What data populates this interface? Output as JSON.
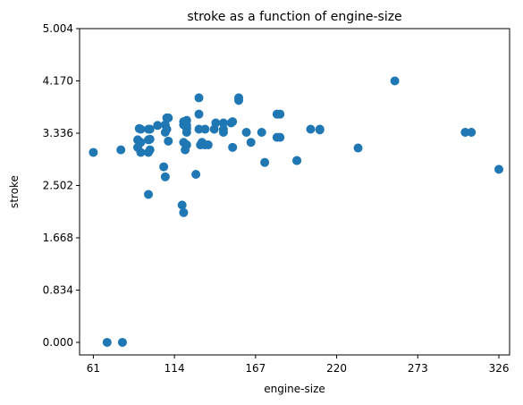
{
  "chart_data": {
    "type": "scatter",
    "title": "stroke as a function of engine-size",
    "xlabel": "engine-size",
    "ylabel": "stroke",
    "xlim": [
      52,
      333
    ],
    "ylim": [
      -0.2,
      5.004
    ],
    "xticks": [
      61,
      114,
      167,
      220,
      273,
      326
    ],
    "xtick_labels": [
      "61",
      "114",
      "167",
      "220",
      "273",
      "326"
    ],
    "yticks": [
      0.0,
      0.834,
      1.668,
      2.502,
      3.336,
      4.17,
      5.004
    ],
    "ytick_labels": [
      "0.000",
      "0.834",
      "1.668",
      "2.502",
      "3.336",
      "4.170",
      "5.004"
    ],
    "grid": false,
    "marker_color": "#1f77b4",
    "series": [
      {
        "x": [
          61,
          70,
          80,
          79,
          90,
          90,
          91,
          92,
          92,
          92,
          97,
          97,
          97,
          98,
          98,
          98,
          103,
          108,
          108,
          108,
          109,
          109,
          110,
          110,
          120,
          120,
          120,
          121,
          122,
          122,
          122,
          122,
          122,
          131,
          130,
          130,
          130,
          132,
          134,
          134,
          136,
          140,
          141,
          146,
          146,
          146,
          151,
          152,
          152,
          156,
          156,
          161,
          164,
          171,
          173,
          181,
          181,
          183,
          183,
          194,
          194,
          203,
          209,
          209,
          234,
          258,
          304,
          308,
          326,
          97,
          107,
          119,
          120,
          128
        ],
        "y": [
          3.03,
          0.0,
          0.0,
          3.07,
          3.23,
          3.11,
          3.41,
          3.03,
          3.19,
          3.4,
          3.03,
          3.23,
          3.4,
          3.07,
          3.24,
          3.4,
          3.46,
          2.64,
          3.35,
          3.47,
          3.4,
          3.58,
          3.21,
          3.58,
          3.47,
          3.52,
          3.19,
          3.07,
          3.41,
          3.46,
          3.15,
          3.35,
          3.54,
          3.15,
          3.4,
          3.64,
          3.9,
          3.19,
          3.4,
          3.15,
          3.15,
          3.4,
          3.5,
          3.5,
          3.35,
          3.4,
          3.5,
          3.11,
          3.52,
          3.86,
          3.9,
          3.35,
          3.19,
          3.35,
          2.87,
          3.27,
          3.64,
          3.27,
          3.64,
          2.9,
          2.9,
          3.4,
          3.4,
          3.39,
          3.1,
          4.17,
          3.35,
          3.35,
          2.76,
          2.36,
          2.8,
          2.19,
          2.07,
          2.68
        ]
      }
    ]
  }
}
